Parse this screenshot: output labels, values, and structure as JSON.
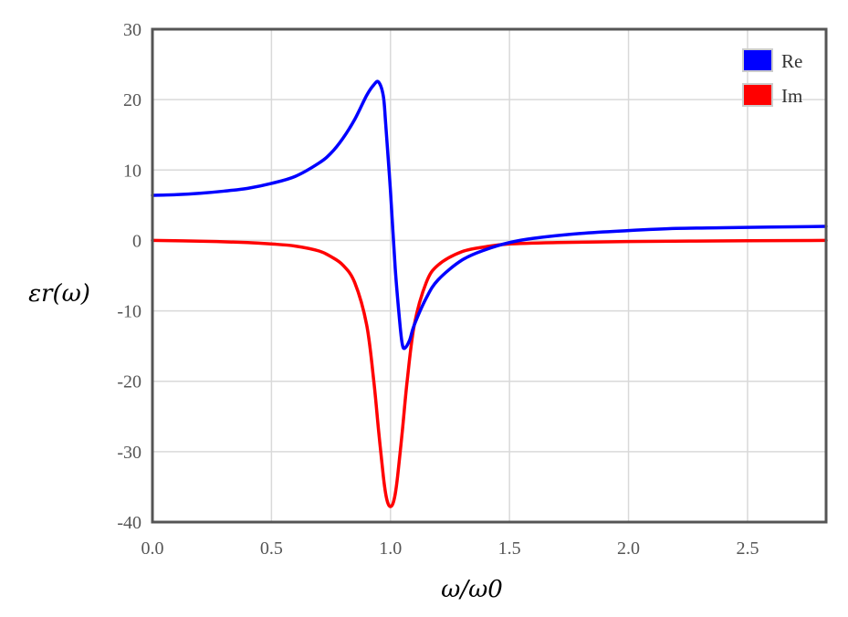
{
  "chart_data": {
    "type": "line",
    "title": "",
    "xlabel": "ω/ω0",
    "ylabel": "εr(ω)",
    "xlim": [
      0,
      2.83
    ],
    "ylim": [
      -40,
      30
    ],
    "xticks": [
      "0.0",
      "0.5",
      "1.0",
      "1.5",
      "2.0",
      "2.5"
    ],
    "yticks": [
      "30",
      "20",
      "10",
      "0",
      "-10",
      "-20",
      "-30",
      "-40"
    ],
    "grid": true,
    "legend": "top-right",
    "series": [
      {
        "name": "Re",
        "color": "#0000ff",
        "x": [
          0,
          0.1,
          0.2,
          0.3,
          0.4,
          0.5,
          0.6,
          0.7,
          0.75,
          0.8,
          0.85,
          0.9,
          0.93,
          0.95,
          0.97,
          0.98,
          1.0,
          1.02,
          1.04,
          1.05,
          1.06,
          1.08,
          1.1,
          1.15,
          1.2,
          1.3,
          1.4,
          1.5,
          1.6,
          1.8,
          2.0,
          2.2,
          2.4,
          2.6,
          2.83
        ],
        "values": [
          6.4,
          6.5,
          6.7,
          7.0,
          7.4,
          8.1,
          9.1,
          11.0,
          12.4,
          14.5,
          17.2,
          20.6,
          22.1,
          22.5,
          20.5,
          16.5,
          7.0,
          -4.0,
          -12.0,
          -14.8,
          -15.3,
          -14.2,
          -12.0,
          -8.2,
          -5.6,
          -2.8,
          -1.3,
          -0.3,
          0.3,
          1.0,
          1.4,
          1.7,
          1.8,
          1.9,
          2.0
        ]
      },
      {
        "name": "Im",
        "color": "#ff0000",
        "x": [
          0,
          0.2,
          0.4,
          0.5,
          0.6,
          0.7,
          0.75,
          0.8,
          0.85,
          0.9,
          0.93,
          0.95,
          0.97,
          0.98,
          0.99,
          1.0,
          1.01,
          1.02,
          1.03,
          1.05,
          1.07,
          1.1,
          1.15,
          1.2,
          1.3,
          1.4,
          1.5,
          1.7,
          2.0,
          2.5,
          2.83
        ],
        "values": [
          0,
          -0.1,
          -0.3,
          -0.5,
          -0.8,
          -1.5,
          -2.3,
          -3.5,
          -6.0,
          -12.0,
          -20.0,
          -27.0,
          -33.5,
          -36.0,
          -37.4,
          -37.8,
          -37.4,
          -36.0,
          -33.5,
          -27.0,
          -20.0,
          -12.0,
          -6.0,
          -3.5,
          -1.6,
          -0.9,
          -0.5,
          -0.3,
          -0.15,
          -0.05,
          0
        ]
      }
    ]
  }
}
